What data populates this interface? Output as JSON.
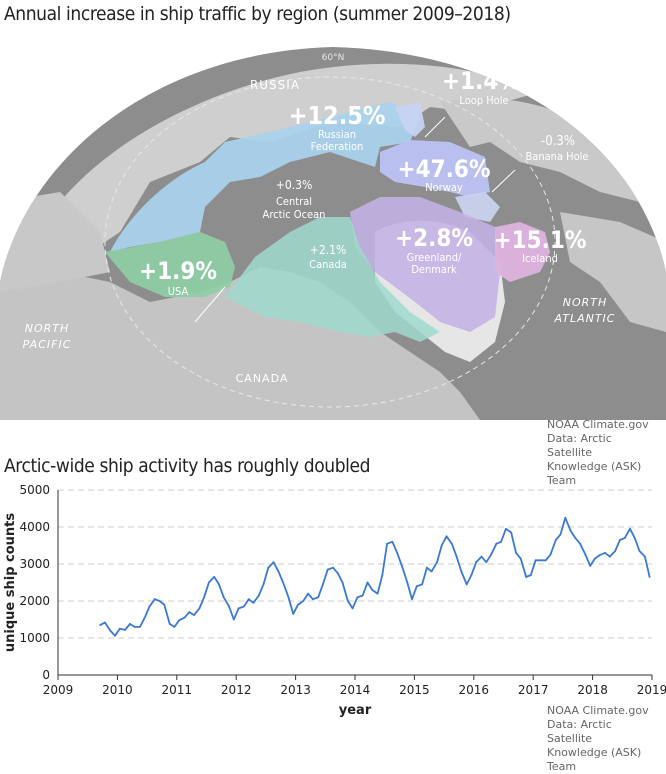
{
  "map": {
    "title": "Annual increase in ship traffic by region (summer 2009–2018)",
    "latitude_label": "60°N",
    "regions": [
      {
        "pct": "+12.5%",
        "name1": "Russian",
        "name2": "Federation",
        "color": "#a9d2ee"
      },
      {
        "pct": "+1.4%",
        "name1": "Loop Hole",
        "name2": "",
        "color": "#c7d3f2"
      },
      {
        "pct": "+47.6%",
        "name1": "Norway",
        "name2": "",
        "color": "#bcc3f5"
      },
      {
        "pct": "-0.3%",
        "name1": "Banana Hole",
        "name2": "",
        "color": "#c9d2ef"
      },
      {
        "pct": "+0.3%",
        "name1": "Central",
        "name2": "Arctic Ocean",
        "color": "#5e5e5e"
      },
      {
        "pct": "+2.1%",
        "name1": "Canada",
        "name2": "",
        "color": "#9fd9cd"
      },
      {
        "pct": "+2.8%",
        "name1": "Greenland/",
        "name2": "Denmark",
        "color": "#c4b2e6"
      },
      {
        "pct": "+15.1%",
        "name1": "Iceland",
        "name2": "",
        "color": "#ddb3df"
      },
      {
        "pct": "+1.9%",
        "name1": "USA",
        "name2": "",
        "color": "#8fcfa6"
      }
    ],
    "geo_labels": {
      "russia": "RUSSIA",
      "north_pacific_1": "NORTH",
      "north_pacific_2": "PACIFIC",
      "north_atlantic_1": "NORTH",
      "north_atlantic_2": "ATLANTIC",
      "canada": "CANADA"
    },
    "credit": [
      "NOAA Climate.gov",
      "Data: Arctic Satellite",
      "Knowledge (ASK) Team"
    ]
  },
  "chart_title": "Arctic-wide ship activity has roughly doubled",
  "chart_credit": [
    "NOAA Climate.gov",
    "Data: Arctic Satellite",
    "Knowledge (ASK) Team"
  ],
  "chart_data": {
    "type": "line",
    "xlabel": "year",
    "ylabel": "unique ship counts",
    "xlim": [
      2009,
      2019
    ],
    "ylim": [
      0,
      5000
    ],
    "xticks": [
      2009,
      2010,
      2011,
      2012,
      2013,
      2014,
      2015,
      2016,
      2017,
      2018,
      2019
    ],
    "yticks": [
      0,
      1000,
      2000,
      3000,
      4000,
      5000
    ],
    "grid": "horizontal dashed",
    "line_color": "#3b78d8",
    "series": [
      {
        "x": [
          2009.71,
          2009.79,
          2009.88,
          2009.96,
          2010.04,
          2010.13,
          2010.21,
          2010.29,
          2010.38,
          2010.46,
          2010.54,
          2010.63,
          2010.71,
          2010.79,
          2010.88,
          2010.96,
          2011.04,
          2011.13,
          2011.21,
          2011.29,
          2011.38,
          2011.46,
          2011.54,
          2011.63,
          2011.71,
          2011.79,
          2011.88,
          2011.96,
          2012.04,
          2012.13,
          2012.21,
          2012.29,
          2012.38,
          2012.46,
          2012.54,
          2012.63,
          2012.71,
          2012.79,
          2012.88,
          2012.96,
          2013.04,
          2013.13,
          2013.21,
          2013.29,
          2013.38,
          2013.46,
          2013.54,
          2013.63,
          2013.71,
          2013.79,
          2013.88,
          2013.96,
          2014.04,
          2014.13,
          2014.21,
          2014.29,
          2014.38,
          2014.46,
          2014.54,
          2014.63,
          2014.71,
          2014.79,
          2014.88,
          2014.96,
          2015.04,
          2015.13,
          2015.21,
          2015.29,
          2015.38,
          2015.46,
          2015.54,
          2015.63,
          2015.71,
          2015.79,
          2015.88,
          2015.96,
          2016.04,
          2016.13,
          2016.21,
          2016.29,
          2016.38,
          2016.46,
          2016.54,
          2016.63,
          2016.71,
          2016.79,
          2016.88,
          2016.96,
          2017.04,
          2017.13,
          2017.21,
          2017.29,
          2017.38,
          2017.46,
          2017.54,
          2017.63,
          2017.71,
          2017.79,
          2017.88,
          2017.96,
          2018.04,
          2018.13,
          2018.21,
          2018.29,
          2018.38,
          2018.46,
          2018.54,
          2018.63,
          2018.71,
          2018.79,
          2018.88,
          2018.96
        ],
        "y": [
          1350,
          1420,
          1200,
          1060,
          1250,
          1220,
          1380,
          1300,
          1300,
          1550,
          1850,
          2050,
          2000,
          1900,
          1380,
          1300,
          1480,
          1550,
          1700,
          1620,
          1800,
          2100,
          2500,
          2650,
          2450,
          2100,
          1850,
          1500,
          1800,
          1850,
          2050,
          1950,
          2150,
          2450,
          2900,
          3050,
          2800,
          2500,
          2100,
          1650,
          1900,
          2000,
          2200,
          2050,
          2100,
          2450,
          2850,
          2900,
          2750,
          2500,
          2000,
          1800,
          2100,
          2150,
          2500,
          2300,
          2200,
          2700,
          3550,
          3600,
          3300,
          2950,
          2500,
          2050,
          2400,
          2450,
          2900,
          2800,
          3050,
          3500,
          3750,
          3550,
          3200,
          2800,
          2450,
          2700,
          3050,
          3200,
          3050,
          3250,
          3550,
          3600,
          3950,
          3850,
          3300,
          3150,
          2650,
          2700,
          3100,
          3100,
          3100,
          3250,
          3650,
          3800,
          4250,
          3900,
          3700,
          3550,
          3250,
          2950,
          3150,
          3250,
          3300,
          3200,
          3350,
          3650,
          3700,
          3950,
          3700,
          3350,
          3200,
          2650
        ]
      }
    ]
  }
}
